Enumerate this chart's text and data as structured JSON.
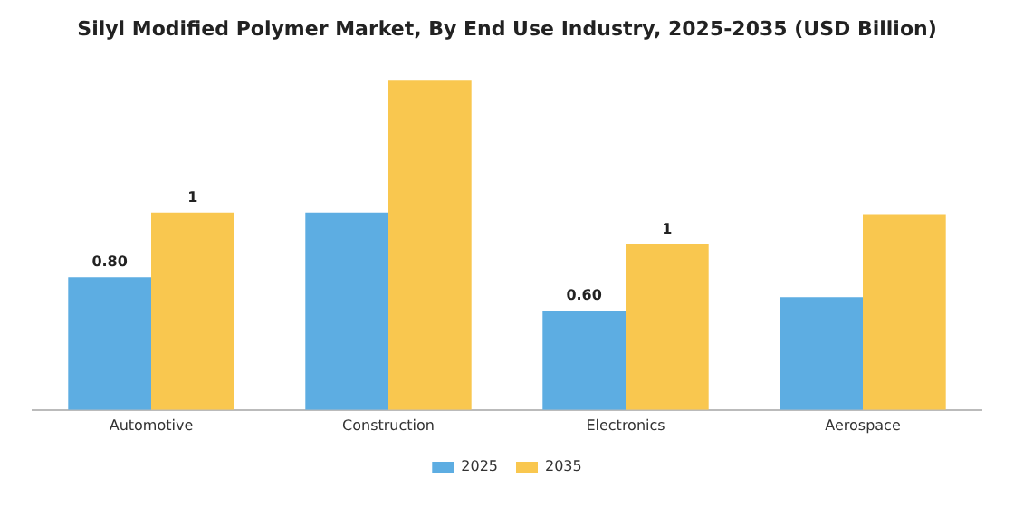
{
  "chart_data": {
    "type": "bar",
    "title": "Silyl Modified Polymer Market, By End Use Industry, 2025-2035 (USD Billion)",
    "categories": [
      "Automotive",
      "Construction",
      "Electronics",
      "Aerospace"
    ],
    "series": [
      {
        "name": "2025",
        "color": "#5dade2",
        "values": [
          0.8,
          1.19,
          0.6,
          0.68
        ],
        "value_labels": [
          "0.80",
          null,
          "0.60",
          null
        ]
      },
      {
        "name": "2035",
        "color": "#f9c74f",
        "values": [
          1.19,
          1.99,
          1.0,
          1.18
        ],
        "value_labels": [
          "1",
          null,
          "1",
          null
        ]
      }
    ],
    "tick_labels": "x",
    "legend": "bottom",
    "grid": false
  }
}
